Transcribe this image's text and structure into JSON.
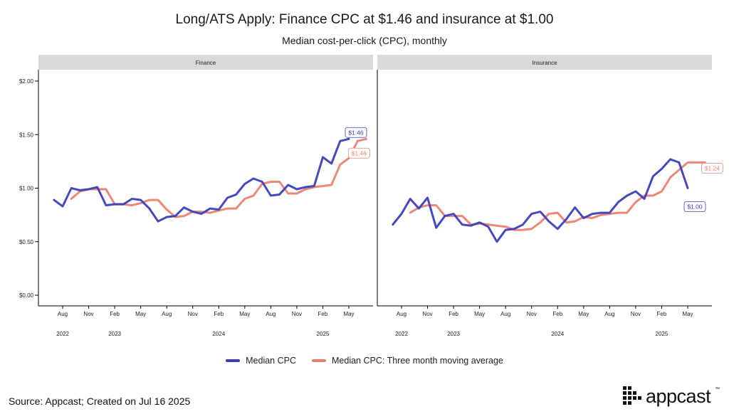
{
  "title": "Long/ATS Apply: Finance CPC at $1.46 and insurance at $1.00",
  "subtitle": "Median cost-per-click (CPC), monthly",
  "source": "Source: Appcast; Created on Jul 16 2025",
  "brand": {
    "name": "appcast",
    "tm": "™",
    "logo_icon": "appcast-dot-grid-logo"
  },
  "colors": {
    "median": "#3a3fbd",
    "moving_average": "#ee7f6e",
    "strip": "#d9d9d9",
    "axis": "#000000"
  },
  "chart_data": {
    "type": "line",
    "y_axis": {
      "ylim": [
        0,
        2.0
      ],
      "ticks": [
        0,
        0.5,
        1.0,
        1.5,
        2.0
      ],
      "tick_labels": [
        "$0.00",
        "$0.50",
        "$1.00",
        "$1.50",
        "$2.00"
      ]
    },
    "x_axis": {
      "xlim": [
        0,
        36
      ],
      "month_ticks": [
        {
          "i": 2,
          "label": "Aug"
        },
        {
          "i": 5,
          "label": "Nov"
        },
        {
          "i": 8,
          "label": "Feb"
        },
        {
          "i": 11,
          "label": "May"
        },
        {
          "i": 14,
          "label": "Aug"
        },
        {
          "i": 17,
          "label": "Nov"
        },
        {
          "i": 20,
          "label": "Feb"
        },
        {
          "i": 23,
          "label": "May"
        },
        {
          "i": 26,
          "label": "Aug"
        },
        {
          "i": 29,
          "label": "Nov"
        },
        {
          "i": 32,
          "label": "Feb"
        },
        {
          "i": 35,
          "label": "May"
        }
      ],
      "year_labels": [
        {
          "i": 2,
          "label": "2022"
        },
        {
          "i": 8,
          "label": "2023"
        },
        {
          "i": 20,
          "label": "2024"
        },
        {
          "i": 32,
          "label": "2025"
        }
      ]
    },
    "legend": [
      "Median CPC",
      "Median CPC: Three month moving average"
    ],
    "panels": [
      {
        "label": "Finance",
        "series": [
          {
            "name": "Median CPC",
            "start_index": 1,
            "values": [
              0.89,
              0.83,
              1.0,
              0.98,
              0.99,
              1.01,
              0.84,
              0.85,
              0.85,
              0.9,
              0.89,
              0.81,
              0.69,
              0.73,
              0.74,
              0.82,
              0.78,
              0.76,
              0.81,
              0.8,
              0.91,
              0.94,
              1.04,
              1.09,
              1.06,
              0.93,
              0.94,
              1.03,
              0.99,
              1.01,
              1.02,
              1.29,
              1.23,
              1.44,
              1.46
            ]
          },
          {
            "name": "Median CPC: Three month moving average",
            "start_index": 3,
            "values": [
              0.9,
              0.97,
              0.99,
              0.99,
              0.99,
              0.85,
              0.85,
              0.84,
              0.86,
              0.89,
              0.89,
              0.8,
              0.73,
              0.74,
              0.78,
              0.78,
              0.77,
              0.79,
              0.81,
              0.81,
              0.9,
              0.93,
              1.04,
              1.06,
              1.06,
              0.95,
              0.95,
              0.99,
              1.01,
              1.02,
              1.03,
              1.22,
              1.28,
              1.44,
              1.46
            ]
          }
        ],
        "annotations": [
          {
            "series": "Median CPC",
            "label": "$1.46",
            "value": 1.46
          },
          {
            "series": "Median CPC: Three month moving average",
            "label": "$1.46",
            "value": 1.46
          }
        ]
      },
      {
        "label": "Insurance",
        "series": [
          {
            "name": "Median CPC",
            "start_index": 1,
            "values": [
              0.66,
              0.76,
              0.9,
              0.81,
              0.91,
              0.63,
              0.74,
              0.76,
              0.66,
              0.65,
              0.68,
              0.64,
              0.5,
              0.61,
              0.62,
              0.66,
              0.76,
              0.78,
              0.69,
              0.62,
              0.71,
              0.82,
              0.72,
              0.76,
              0.77,
              0.77,
              0.87,
              0.93,
              0.97,
              0.9,
              1.11,
              1.18,
              1.27,
              1.24,
              1.0
            ]
          },
          {
            "name": "Median CPC: Three month moving average",
            "start_index": 3,
            "values": [
              0.77,
              0.82,
              0.84,
              0.84,
              0.74,
              0.74,
              0.74,
              0.66,
              0.67,
              0.66,
              0.65,
              0.64,
              0.61,
              0.61,
              0.62,
              0.68,
              0.76,
              0.77,
              0.68,
              0.69,
              0.73,
              0.72,
              0.75,
              0.76,
              0.77,
              0.77,
              0.87,
              0.93,
              0.93,
              0.97,
              1.1,
              1.17,
              1.24,
              1.24,
              1.24
            ]
          }
        ],
        "annotations": [
          {
            "series": "Median CPC: Three month moving average",
            "label": "$1.24",
            "value": 1.24
          },
          {
            "series": "Median CPC",
            "label": "$1.00",
            "value": 1.0
          }
        ]
      }
    ]
  }
}
